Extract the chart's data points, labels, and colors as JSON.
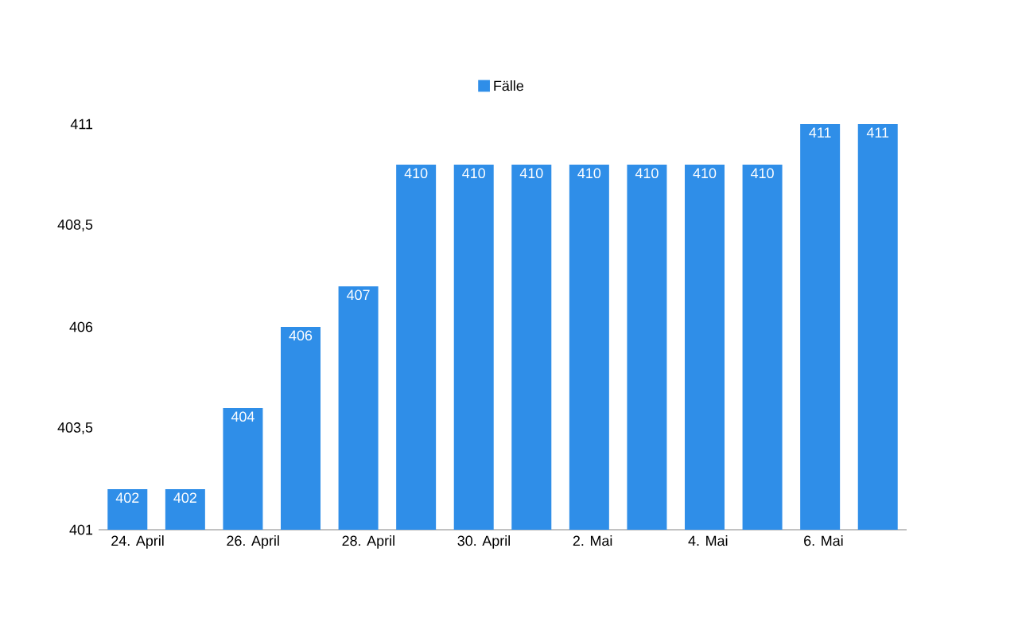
{
  "chart_data": {
    "type": "bar",
    "categories": [
      "24. April",
      null,
      "26. April",
      null,
      "28. April",
      null,
      "30. April",
      null,
      "2. Mai",
      null,
      "4. Mai",
      null,
      "6. Mai",
      null
    ],
    "series": [
      {
        "name": "Fälle",
        "color": "#2f8ee8",
        "values": [
          402,
          402,
          404,
          406,
          407,
          410,
          410,
          410,
          410,
          410,
          410,
          410,
          411,
          411
        ]
      }
    ],
    "ylim": [
      401,
      411
    ],
    "yticks": [
      401,
      {
        "value": 403.5,
        "label": "403,5"
      },
      406,
      {
        "value": 408.5,
        "label": "408,5"
      },
      411
    ],
    "data_labels": true,
    "legend": "top",
    "grid": false
  }
}
